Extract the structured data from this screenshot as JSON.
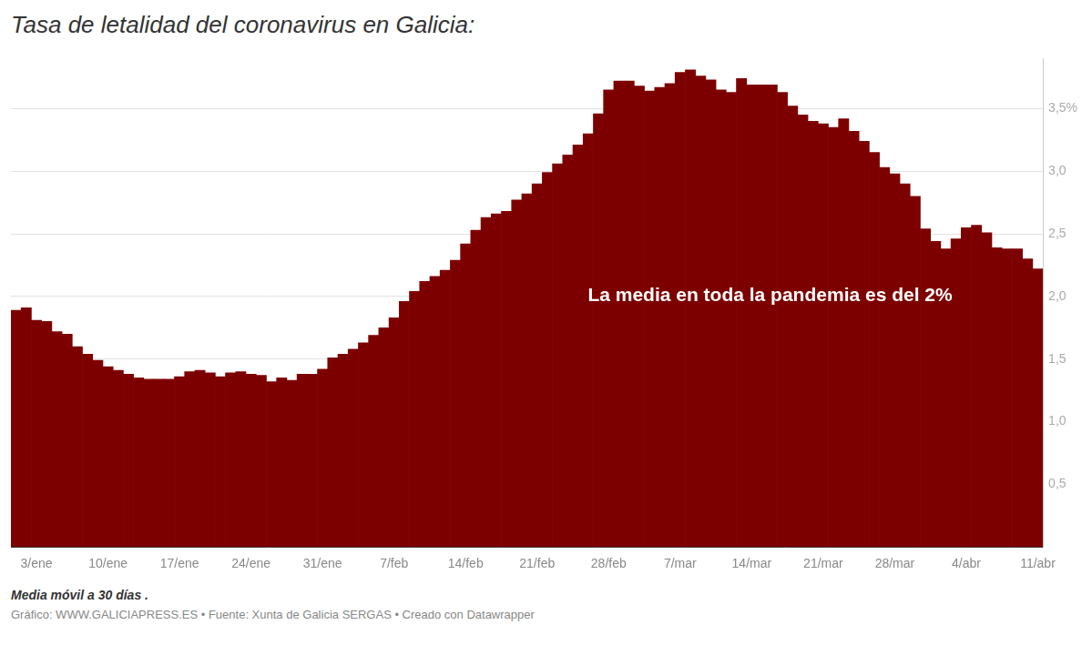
{
  "chart_data": {
    "type": "bar",
    "title": "Tasa de letalidad del coronavirus en Galicia:",
    "annotation": "La media en toda la pandemia es del 2%",
    "notes": [
      "Media móvil a 30 días .",
      "Gráfico: WWW.GALICIAPRESS.ES • Fuente: Xunta de Galicia SERGAS • Creado con Datawrapper"
    ],
    "categories": [
      null,
      null,
      "3/ene",
      null,
      null,
      null,
      null,
      null,
      null,
      "10/ene",
      null,
      null,
      null,
      null,
      null,
      null,
      "17/ene",
      null,
      null,
      null,
      null,
      null,
      null,
      "24/ene",
      null,
      null,
      null,
      null,
      null,
      null,
      "31/ene",
      null,
      null,
      null,
      null,
      null,
      null,
      "7/feb",
      null,
      null,
      null,
      null,
      null,
      null,
      "14/feb",
      null,
      null,
      null,
      null,
      null,
      null,
      "21/feb",
      null,
      null,
      null,
      null,
      null,
      null,
      "28/feb",
      null,
      null,
      null,
      null,
      null,
      null,
      "7/mar",
      null,
      null,
      null,
      null,
      null,
      null,
      "14/mar",
      null,
      null,
      null,
      null,
      null,
      null,
      "21/mar",
      null,
      null,
      null,
      null,
      null,
      null,
      "28/mar",
      null,
      null,
      null,
      null,
      null,
      null,
      "4/abr",
      null,
      null,
      null,
      null,
      null,
      null,
      "11/abr"
    ],
    "values": [
      1.89,
      1.91,
      1.81,
      1.8,
      1.72,
      1.7,
      1.6,
      1.54,
      1.49,
      1.44,
      1.41,
      1.38,
      1.35,
      1.34,
      1.34,
      1.34,
      1.36,
      1.4,
      1.41,
      1.39,
      1.36,
      1.39,
      1.4,
      1.38,
      1.37,
      1.32,
      1.35,
      1.33,
      1.38,
      1.38,
      1.42,
      1.51,
      1.54,
      1.58,
      1.63,
      1.69,
      1.75,
      1.83,
      1.96,
      2.04,
      2.12,
      2.16,
      2.21,
      2.29,
      2.42,
      2.53,
      2.63,
      2.66,
      2.68,
      2.77,
      2.82,
      2.9,
      2.99,
      3.06,
      3.13,
      3.21,
      3.3,
      3.46,
      3.65,
      3.72,
      3.72,
      3.68,
      3.64,
      3.67,
      3.7,
      3.79,
      3.81,
      3.76,
      3.73,
      3.65,
      3.63,
      3.74,
      3.69,
      3.69,
      3.69,
      3.63,
      3.52,
      3.45,
      3.4,
      3.38,
      3.35,
      3.42,
      3.32,
      3.24,
      3.15,
      3.03,
      2.98,
      2.9,
      2.8,
      2.54,
      2.44,
      2.38,
      2.46,
      2.55,
      2.57,
      2.51,
      2.39,
      2.38,
      2.38,
      2.3,
      2.22
    ],
    "color": "#7d0000",
    "ylim": [
      0,
      3.9
    ],
    "yticks": [
      {
        "value": 0.5,
        "label": "0,5"
      },
      {
        "value": 1.0,
        "label": "1,0"
      },
      {
        "value": 1.5,
        "label": "1,5"
      },
      {
        "value": 2.0,
        "label": "2,0"
      },
      {
        "value": 2.5,
        "label": "2,5"
      },
      {
        "value": 3.0,
        "label": "3,0"
      },
      {
        "value": 3.5,
        "label": "3,5%"
      }
    ],
    "grid": true
  }
}
